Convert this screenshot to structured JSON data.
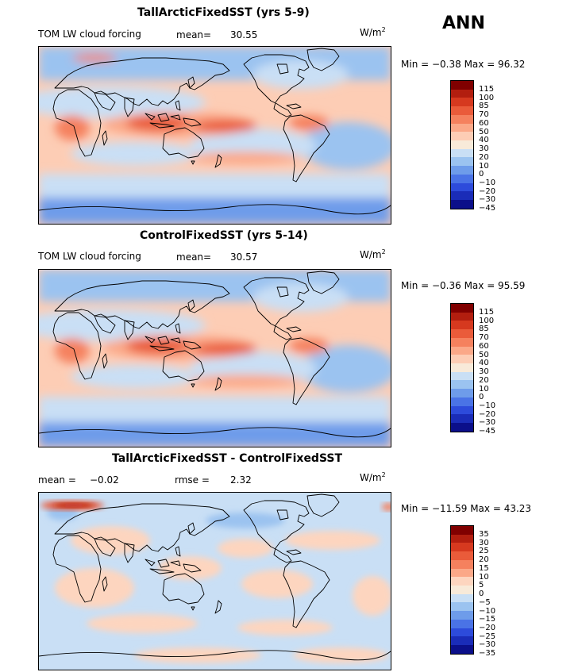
{
  "season": "ANN",
  "units_prefix": "W/m",
  "units_exp": "2",
  "panels": [
    {
      "title": "TallArcticFixedSST (yrs 5-9)",
      "variable": "TOM LW cloud forcing",
      "stat1_label": "mean=",
      "stat1_value": "30.55",
      "minmax": "Min =  −0.38  Max =  96.32",
      "ticks": [
        "115",
        "100",
        "85",
        "70",
        "60",
        "50",
        "40",
        "30",
        "20",
        "10",
        "0",
        "−10",
        "−20",
        "−30",
        "−45"
      ]
    },
    {
      "title": "ControlFixedSST (yrs 5-14)",
      "variable": "TOM LW cloud forcing",
      "stat1_label": "mean=",
      "stat1_value": "30.57",
      "minmax": "Min =  −0.36  Max =  95.59",
      "ticks": [
        "115",
        "100",
        "85",
        "70",
        "60",
        "50",
        "40",
        "30",
        "20",
        "10",
        "0",
        "−10",
        "−20",
        "−30",
        "−45"
      ]
    },
    {
      "title": "TallArcticFixedSST - ControlFixedSST",
      "stat1_label": "mean =",
      "stat1_value": "−0.02",
      "stat2_label": "rmse =",
      "stat2_value": "2.32",
      "minmax": "Min = −11.59  Max =  43.23",
      "ticks": [
        "35",
        "30",
        "25",
        "20",
        "15",
        "10",
        "5",
        "0",
        "−5",
        "−10",
        "−15",
        "−20",
        "−25",
        "−30",
        "−35"
      ]
    }
  ],
  "colors": {
    "abs_scale": [
      "#800000",
      "#b21e0f",
      "#d6391f",
      "#ea5b3a",
      "#f5815e",
      "#fba888",
      "#fdcdb5",
      "#f8ead9",
      "#c9dff5",
      "#9bc3f0",
      "#6e9cea",
      "#4a73e6",
      "#2d4bdb",
      "#1a2cb8",
      "#0b0f8a"
    ],
    "diff_scale": [
      "#800000",
      "#b21e0f",
      "#d6391f",
      "#ea5b3a",
      "#f5815e",
      "#fba888",
      "#fdd5bf",
      "#f8ead9",
      "#c9dff5",
      "#9bc3f0",
      "#6e9cea",
      "#4a73e6",
      "#2d4bdb",
      "#1a2cb8",
      "#0b0f8a"
    ]
  }
}
